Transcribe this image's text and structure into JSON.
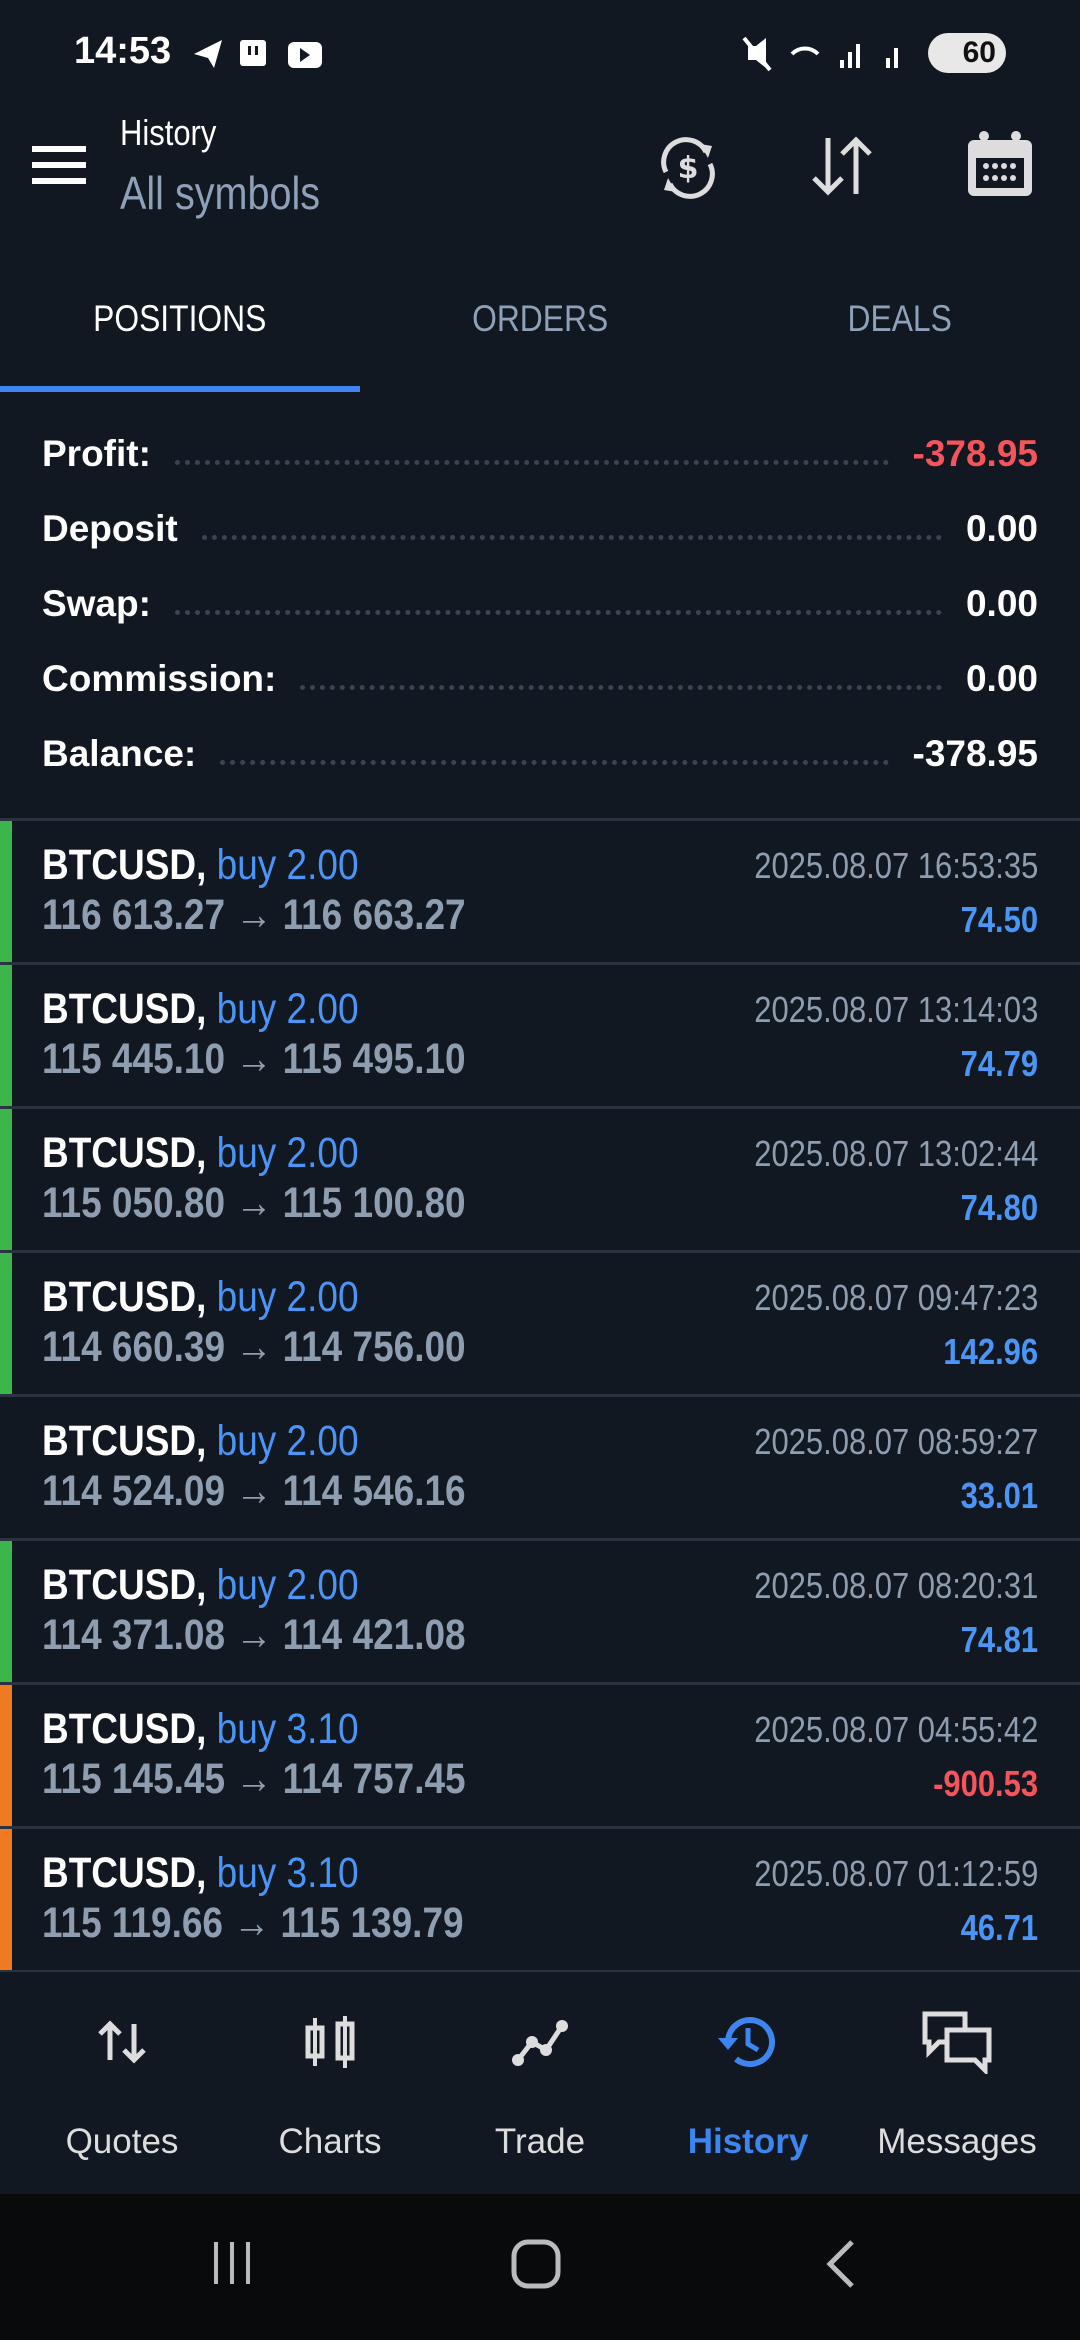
{
  "status_bar": {
    "time": "14:53",
    "battery": "60"
  },
  "header": {
    "title": "History",
    "subtitle": "All symbols"
  },
  "tabs": [
    {
      "label": "POSITIONS",
      "active": true
    },
    {
      "label": "ORDERS",
      "active": false
    },
    {
      "label": "DEALS",
      "active": false
    }
  ],
  "summary": [
    {
      "label": "Profit:",
      "value": "-378.95",
      "color": "#f4545a"
    },
    {
      "label": "Deposit",
      "value": "0.00",
      "color": "#ffffff"
    },
    {
      "label": "Swap:",
      "value": "0.00",
      "color": "#ffffff"
    },
    {
      "label": "Commission:",
      "value": "0.00",
      "color": "#ffffff"
    },
    {
      "label": "Balance:",
      "value": "-378.95",
      "color": "#ffffff"
    }
  ],
  "positions": [
    {
      "symbol": "BTCUSD,",
      "side": "buy 2.00",
      "open": "116 613.27",
      "close": "116 663.27",
      "time": "2025.08.07 16:53:35",
      "profit": "74.50",
      "bar": "#3cb54a"
    },
    {
      "symbol": "BTCUSD,",
      "side": "buy 2.00",
      "open": "115 445.10",
      "close": "115 495.10",
      "time": "2025.08.07 13:14:03",
      "profit": "74.79",
      "bar": "#3cb54a"
    },
    {
      "symbol": "BTCUSD,",
      "side": "buy 2.00",
      "open": "115 050.80",
      "close": "115 100.80",
      "time": "2025.08.07 13:02:44",
      "profit": "74.80",
      "bar": "#3cb54a"
    },
    {
      "symbol": "BTCUSD,",
      "side": "buy 2.00",
      "open": "114 660.39",
      "close": "114 756.00",
      "time": "2025.08.07 09:47:23",
      "profit": "142.96",
      "bar": "#3cb54a"
    },
    {
      "symbol": "BTCUSD,",
      "side": "buy 2.00",
      "open": "114 524.09",
      "close": "114 546.16",
      "time": "2025.08.07 08:59:27",
      "profit": "33.01",
      "bar": ""
    },
    {
      "symbol": "BTCUSD,",
      "side": "buy 2.00",
      "open": "114 371.08",
      "close": "114 421.08",
      "time": "2025.08.07 08:20:31",
      "profit": "74.81",
      "bar": "#3cb54a"
    },
    {
      "symbol": "BTCUSD,",
      "side": "buy 3.10",
      "open": "115 145.45",
      "close": "114 757.45",
      "time": "2025.08.07 04:55:42",
      "profit": "-900.53",
      "bar": "#ee7a22"
    },
    {
      "symbol": "BTCUSD,",
      "side": "buy 3.10",
      "open": "115 119.66",
      "close": "115 139.79",
      "time": "2025.08.07 01:12:59",
      "profit": "46.71",
      "bar": "#ee7a22"
    }
  ],
  "arrow": "→",
  "colors": {
    "positive": "#4a95f5",
    "negative": "#f4545a",
    "accent": "#3d85f0"
  },
  "nav": [
    {
      "label": "Quotes",
      "icon": "quotes-icon",
      "active": false
    },
    {
      "label": "Charts",
      "icon": "charts-icon",
      "active": false
    },
    {
      "label": "Trade",
      "icon": "trade-icon",
      "active": false
    },
    {
      "label": "History",
      "icon": "history-icon",
      "active": true
    },
    {
      "label": "Messages",
      "icon": "messages-icon",
      "active": false
    }
  ]
}
